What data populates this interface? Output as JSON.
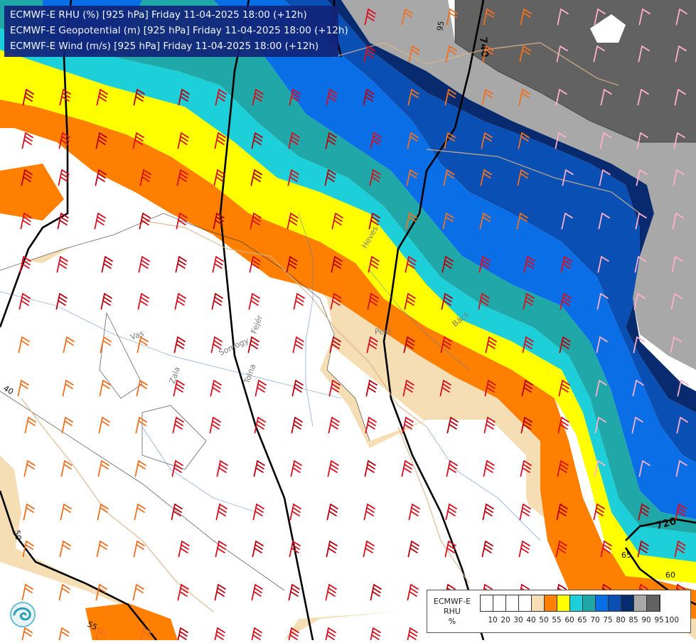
{
  "header": {
    "line1": "ECMWF-E RHU (%) [925 hPa] Friday 11-04-2025 18:00 (+12h)",
    "line2": "ECMWF-E Geopotential (m) [925 hPa] Friday 11-04-2025 18:00 (+12h)",
    "line3": "ECMWF-E Wind (m/s) [925 hPa] Friday 11-04-2025 18:00 (+12h)"
  },
  "legend": {
    "title_lines": [
      "ECMWF-E",
      "RHU",
      "%"
    ],
    "colors": [
      "#ffffff",
      "#ffffff",
      "#ffffff",
      "#ffffff",
      "#f5deb3",
      "#ff8000",
      "#ffff00",
      "#1ccfd8",
      "#20a8a8",
      "#0a6ee6",
      "#0a50b4",
      "#082a6e",
      "#a8a8a8",
      "#626262"
    ],
    "ticks": [
      "10",
      "20",
      "30",
      "40",
      "50",
      "55",
      "60",
      "65",
      "70",
      "75",
      "80",
      "85",
      "90",
      "95",
      "100"
    ]
  },
  "contour_labels": {
    "geo_740": "740",
    "geo_720": "720",
    "rh_95": "95",
    "rh_65": "65",
    "rh_60": "60",
    "rh_40": "40",
    "rh_55": "55",
    "rh_50": "50"
  },
  "place_labels": [
    "Vas",
    "Somogy",
    "Zala",
    "Tolna",
    "Fejér",
    "Pest",
    "Bács",
    "Heves"
  ],
  "wind_colors": {
    "light": "#ffb0cc",
    "moderate": "#f07020",
    "strong": "#d81020",
    "stronger": "#b80010"
  }
}
